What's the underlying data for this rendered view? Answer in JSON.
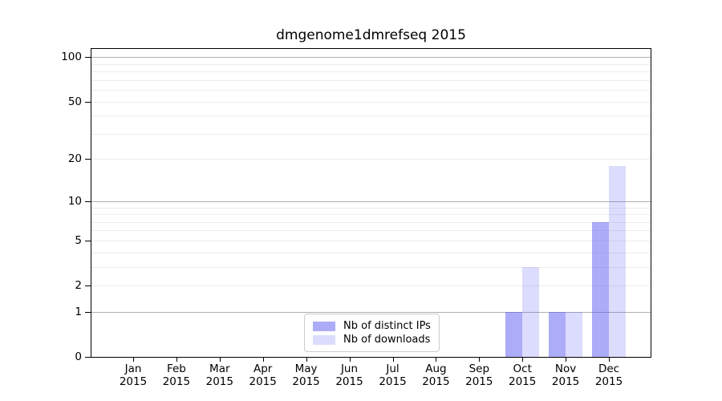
{
  "chart_data": {
    "type": "bar",
    "title": "dmgenome1dmrefseq 2015",
    "x_months": [
      "Jan",
      "Feb",
      "Mar",
      "Apr",
      "May",
      "Jun",
      "Jul",
      "Aug",
      "Sep",
      "Oct",
      "Nov",
      "Dec"
    ],
    "x_year": "2015",
    "series": [
      {
        "name": "Nb of distinct IPs",
        "color": "rgba(82,82,240,0.48)",
        "values": [
          0,
          0,
          0,
          0,
          0,
          0,
          0,
          0,
          0,
          1,
          1,
          7
        ]
      },
      {
        "name": "Nb of downloads",
        "color": "rgba(82,82,240,0.20)",
        "values": [
          0,
          0,
          0,
          0,
          0,
          0,
          0,
          0,
          0,
          3,
          1,
          18
        ]
      }
    ],
    "yscale": "log1p",
    "ylim": [
      0,
      113
    ],
    "yticks": [
      0,
      1,
      2,
      5,
      10,
      20,
      50,
      100
    ],
    "major_gridlines": [
      1,
      10,
      100
    ],
    "minor_gridlines": [
      2,
      3,
      4,
      5,
      6,
      7,
      8,
      9,
      20,
      30,
      40,
      50,
      60,
      70,
      80,
      90
    ],
    "grid": "horizontal",
    "legend_position": "lower-center-inside",
    "bar_group": "paired"
  }
}
